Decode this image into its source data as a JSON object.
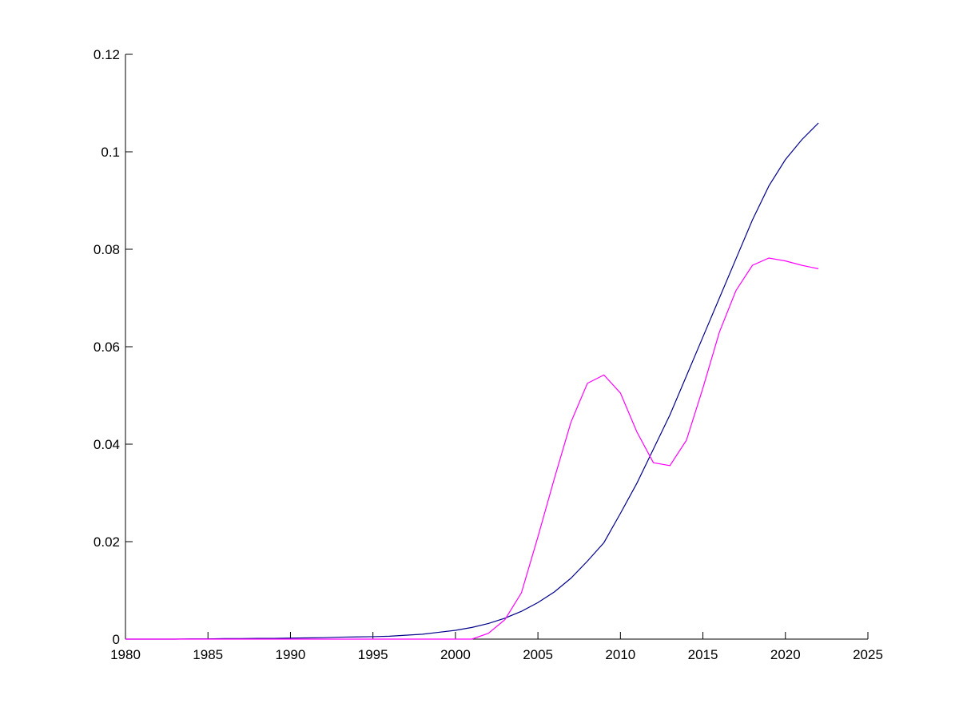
{
  "chart_data": {
    "type": "line",
    "x": [
      1980,
      1981,
      1982,
      1983,
      1984,
      1985,
      1986,
      1987,
      1988,
      1989,
      1990,
      1991,
      1992,
      1993,
      1994,
      1995,
      1996,
      1997,
      1998,
      1999,
      2000,
      2001,
      2002,
      2003,
      2004,
      2005,
      2006,
      2007,
      2008,
      2009,
      2010,
      2011,
      2012,
      2013,
      2014,
      2015,
      2016,
      2017,
      2018,
      2019,
      2020,
      2021,
      2022
    ],
    "series": [
      {
        "color": "#00008b",
        "values": [
          0,
          0,
          0,
          0,
          5e-05,
          5e-05,
          0.0001,
          0.0001,
          0.00015,
          0.00015,
          0.0002,
          0.00025,
          0.0003,
          0.0004,
          0.00045,
          0.0005,
          0.0006,
          0.0008,
          0.001,
          0.0014,
          0.0018,
          0.0024,
          0.0032,
          0.0043,
          0.0057,
          0.0075,
          0.0097,
          0.0125,
          0.016,
          0.0198,
          0.0258,
          0.032,
          0.039,
          0.046,
          0.054,
          0.062,
          0.07,
          0.078,
          0.086,
          0.093,
          0.0984,
          0.1025,
          0.1059
        ]
      },
      {
        "color": "#ff00ff",
        "values": [
          0,
          0,
          0,
          0,
          0,
          0,
          0,
          0,
          0,
          0,
          0,
          0,
          0,
          0,
          0,
          0,
          0,
          0,
          0,
          0,
          0,
          0,
          0.0012,
          0.004,
          0.0095,
          0.021,
          0.033,
          0.0445,
          0.0525,
          0.0542,
          0.0505,
          0.0425,
          0.0362,
          0.0356,
          0.0408,
          0.0515,
          0.063,
          0.0715,
          0.0767,
          0.0782,
          0.0776,
          0.0767,
          0.076
        ]
      }
    ],
    "xlim": [
      1980,
      2025
    ],
    "xticks": [
      1980,
      1985,
      1990,
      1995,
      2000,
      2005,
      2010,
      2015,
      2020,
      2025
    ],
    "ylim": [
      0,
      0.12
    ],
    "yticks": [
      0,
      0.02,
      0.04,
      0.06,
      0.08,
      0.1,
      0.12
    ],
    "grid": false
  }
}
